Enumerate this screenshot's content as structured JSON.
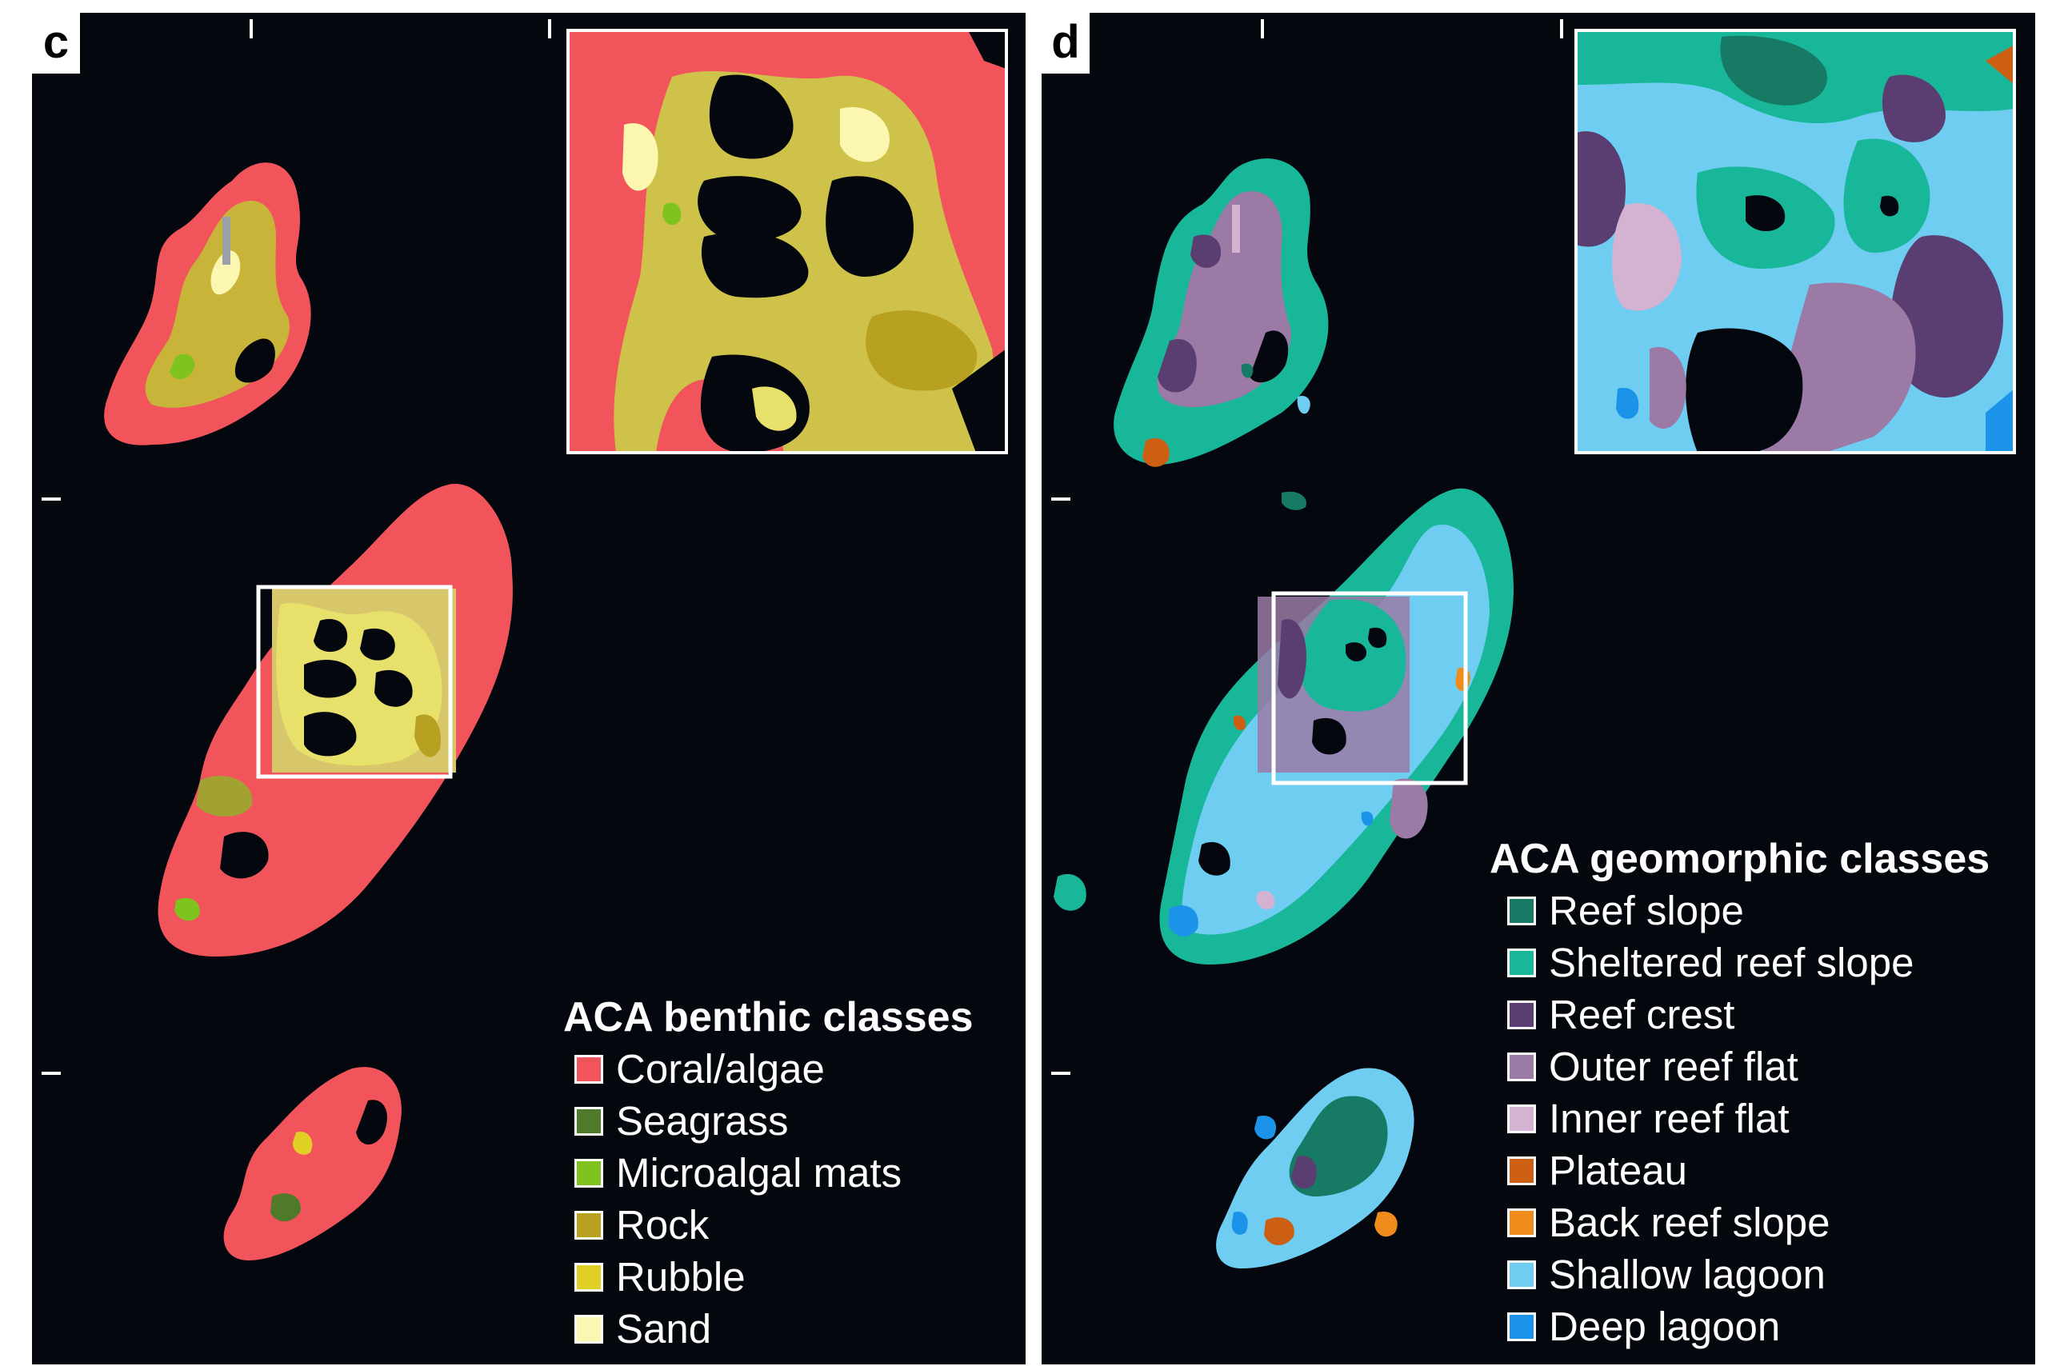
{
  "panels": {
    "c": {
      "label": "c",
      "legend": {
        "title": "ACA benthic classes",
        "items": [
          {
            "label": "Coral/algae",
            "color": "#f2545b"
          },
          {
            "label": "Seagrass",
            "color": "#4f7a2a"
          },
          {
            "label": "Microalgal mats",
            "color": "#7fc31f"
          },
          {
            "label": "Rock",
            "color": "#b8a020"
          },
          {
            "label": "Rubble",
            "color": "#e0cf24"
          },
          {
            "label": "Sand",
            "color": "#fbf6b0"
          }
        ]
      }
    },
    "d": {
      "label": "d",
      "legend": {
        "title": "ACA geomorphic classes",
        "items": [
          {
            "label": "Reef slope",
            "color": "#167a64"
          },
          {
            "label": "Sheltered reef slope",
            "color": "#19b79a"
          },
          {
            "label": "Reef crest",
            "color": "#5a3e72"
          },
          {
            "label": "Outer reef flat",
            "color": "#9b7aa6"
          },
          {
            "label": "Inner reef flat",
            "color": "#d3b2d2"
          },
          {
            "label": "Plateau",
            "color": "#cc5f14"
          },
          {
            "label": "Back reef slope",
            "color": "#f08c1c"
          },
          {
            "label": "Shallow lagoon",
            "color": "#6fcdf2"
          },
          {
            "label": "Deep lagoon",
            "color": "#1b93e8"
          }
        ]
      }
    }
  },
  "map_colors": {
    "background": "#05070f",
    "frame": "#ffffff"
  }
}
